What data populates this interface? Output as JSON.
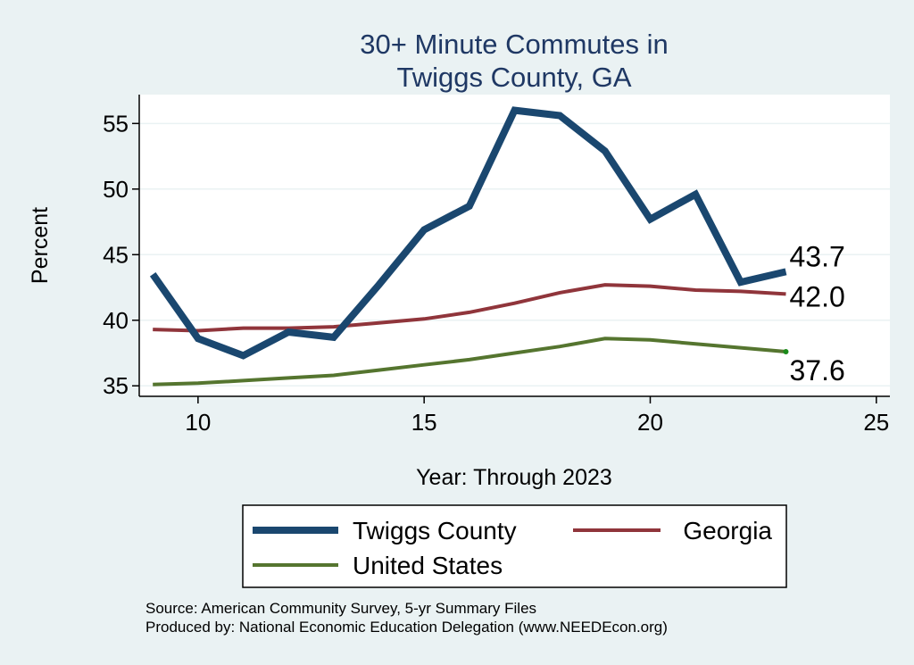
{
  "chart_data": {
    "type": "line",
    "title_lines": [
      "30+ Minute Commutes in",
      "Twiggs County, GA"
    ],
    "xlabel": "Year: Through 2023",
    "ylabel": "Percent",
    "xlim": [
      8.7,
      25.3
    ],
    "ylim": [
      34.2,
      57.2
    ],
    "xticks": [
      10,
      15,
      20,
      25
    ],
    "yticks": [
      35,
      40,
      45,
      50,
      55
    ],
    "grid": true,
    "series": [
      {
        "name": "Twiggs County",
        "color": "#1a476f",
        "x": [
          9,
          10,
          11,
          12,
          13,
          14,
          15,
          16,
          17,
          18,
          19,
          20,
          21,
          22,
          23
        ],
        "y": [
          43.5,
          38.6,
          37.3,
          39.1,
          38.7,
          42.7,
          46.9,
          48.7,
          56.0,
          55.6,
          52.9,
          47.7,
          49.6,
          42.9,
          43.7
        ],
        "end_label": "43.7"
      },
      {
        "name": "Georgia",
        "color": "#90353b",
        "x": [
          9,
          10,
          11,
          12,
          13,
          14,
          15,
          16,
          17,
          18,
          19,
          20,
          21,
          22,
          23
        ],
        "y": [
          39.3,
          39.2,
          39.4,
          39.4,
          39.5,
          39.8,
          40.1,
          40.6,
          41.3,
          42.1,
          42.7,
          42.6,
          42.3,
          42.2,
          42.0
        ],
        "end_label": "42.0"
      },
      {
        "name": "United States",
        "color": "#55752f",
        "x": [
          9,
          10,
          11,
          12,
          13,
          14,
          15,
          16,
          17,
          18,
          19,
          20,
          21,
          22,
          23
        ],
        "y": [
          35.1,
          35.2,
          35.4,
          35.6,
          35.8,
          36.2,
          36.6,
          37.0,
          37.5,
          38.0,
          38.6,
          38.5,
          38.2,
          37.9,
          37.6
        ],
        "end_label": "37.6"
      }
    ],
    "legend": {
      "position": "bottom",
      "entries": [
        "Twiggs County",
        "Georgia",
        "United States"
      ]
    }
  },
  "notes": {
    "source": "Source: American Community Survey, 5-yr Summary Files",
    "produced_by": "Produced by: National Economic Education Delegation (www.NEEDEcon.org)"
  },
  "colors": {
    "background": "#eaf2f3",
    "plot_background": "#ffffff",
    "grid": "#eaf2f3",
    "title": "#1f3864"
  }
}
